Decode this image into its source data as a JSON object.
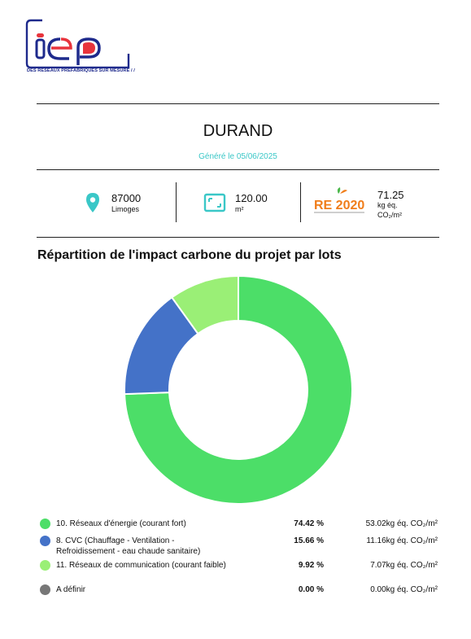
{
  "logo": {
    "text": "iEP",
    "tagline": "DES RÉSEAUX PRÉFABRIQUÉS SUR MESURE / /"
  },
  "header": {
    "title": "DURAND",
    "subtitle": "Généré le 05/06/2025"
  },
  "stats": {
    "location": {
      "icon": "location-pin-icon",
      "postcode": "87000",
      "city": "Limoges"
    },
    "area": {
      "icon": "surface-area-icon",
      "value": "120.00",
      "unit": "m²"
    },
    "re2020": {
      "badge": "RE 2020",
      "value": "71.25",
      "unit_line1": "kg éq.",
      "unit_line2": "CO₂/m²"
    }
  },
  "section": {
    "title": "Répartition de l'impact carbone du projet par lots"
  },
  "chart_data": {
    "type": "pie",
    "donut": true,
    "title": "Répartition de l'impact carbone du projet par lots",
    "series": [
      {
        "name": "10. Réseaux d'énergie (courant fort)",
        "percent": 74.42,
        "value": 53.02,
        "color": "#4cde68"
      },
      {
        "name": "8. CVC (Chauffage - Ventilation - Refroidissement - eau chaude sanitaire)",
        "percent": 15.66,
        "value": 11.16,
        "color": "#4472c8"
      },
      {
        "name": "11. Réseaux de communication (courant faible)",
        "percent": 9.92,
        "value": 7.07,
        "color": "#9aef76"
      },
      {
        "name": "A définir",
        "percent": 0.0,
        "value": 0.0,
        "color": "#777777"
      }
    ],
    "value_unit": "kg éq. CO₂/m²",
    "legend_position": "bottom"
  },
  "legend": [
    {
      "label": "10. Réseaux d'énergie (courant fort)",
      "pct": "74.42 %",
      "value": "53.02kg éq. CO₂/m²",
      "color": "#4cde68"
    },
    {
      "label": "8. CVC (Chauffage - Ventilation - Refroidissement - eau chaude sanitaire)",
      "pct": "15.66 %",
      "value": "11.16kg éq. CO₂/m²",
      "color": "#4472c8"
    },
    {
      "label": "11. Réseaux de communication (courant faible)",
      "pct": "9.92 %",
      "value": "7.07kg éq. CO₂/m²",
      "color": "#9aef76"
    },
    {
      "label": "A définir",
      "pct": "0.00 %",
      "value": "0.00kg éq. CO₂/m²",
      "color": "#777777"
    }
  ],
  "colors": {
    "accent_teal": "#3ac7c7",
    "logo_blue": "#1e2a8c",
    "logo_red": "#e8343c",
    "re2020_orange": "#f07d1a"
  }
}
